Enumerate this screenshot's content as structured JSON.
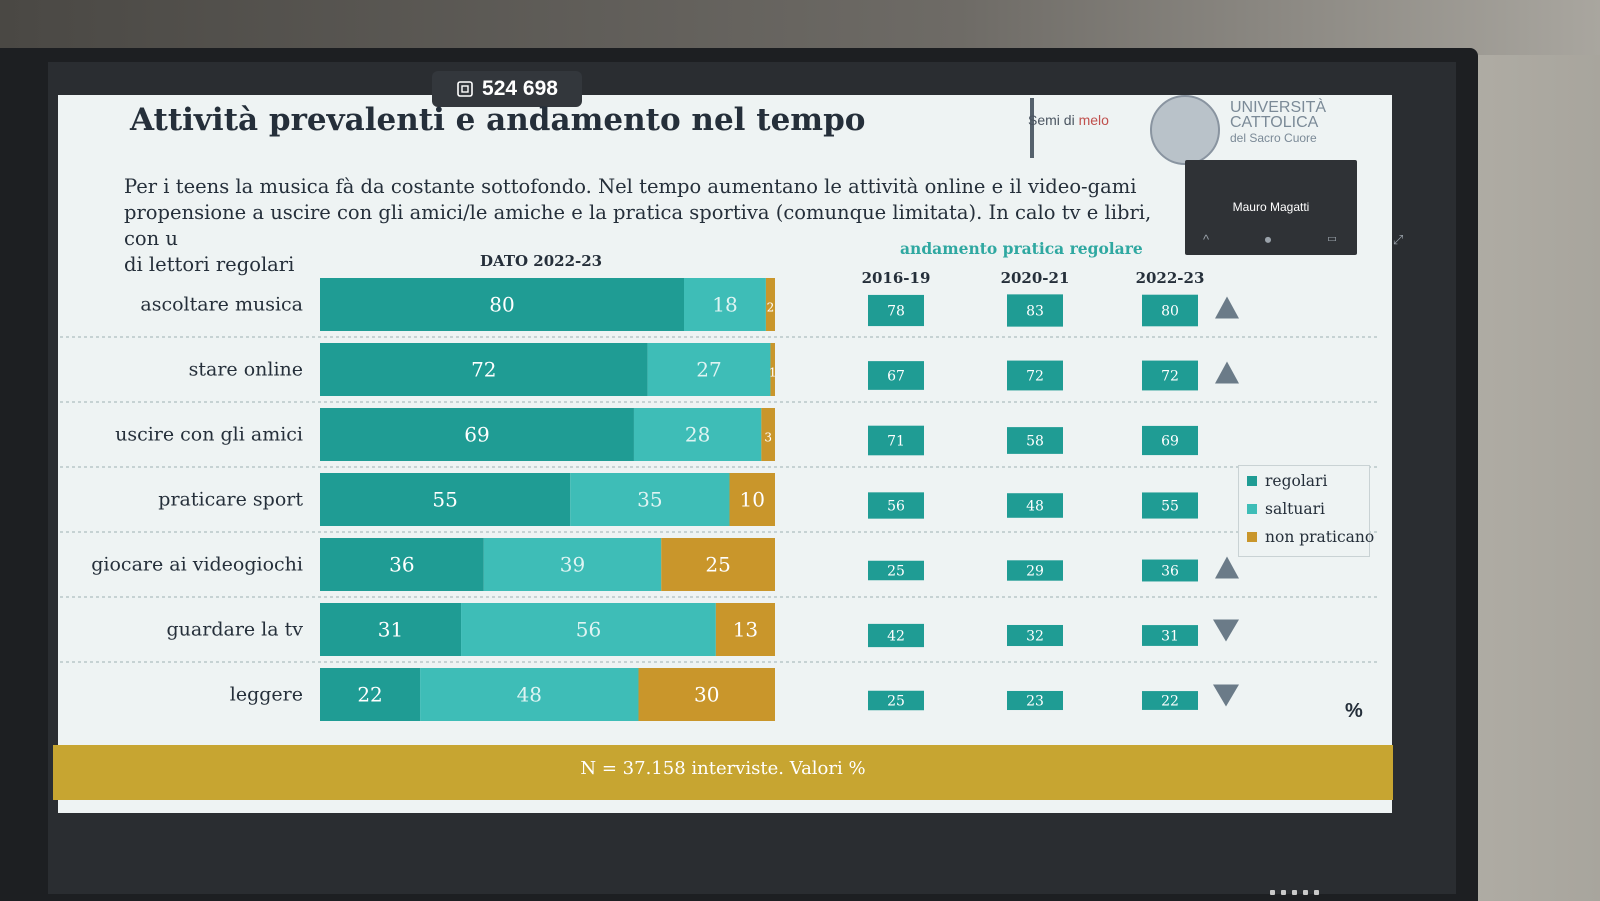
{
  "counter": {
    "icon": "presentation-counter-icon",
    "value": "524 698"
  },
  "slide": {
    "title": "Attività prevalenti e andamento nel tempo",
    "intro_line1": "Per i teens la musica fà da costante sottofondo. Nel tempo aumentano le attività online e il video-gami",
    "intro_line2": "propensione a uscire con gli amici/le amiche e la pratica sportiva (comunque limitata). In calo tv e libri, con u",
    "intro_line3": "di lettori regolari",
    "logo_semi_a": "Semi di ",
    "logo_semi_b": "melo",
    "uni_line1": "UNIVERSITÀ",
    "uni_line2": "CATTOLICA",
    "uni_line3": "del Sacro Cuore",
    "footer": "N = 37.158 interviste. Valori %",
    "percent_sign": "%"
  },
  "video_tile": {
    "name": "Mauro Magatti",
    "controls": "^ ⏺ ▭ ⤢"
  },
  "bar_header": "DATO 2022-23",
  "trend_header": "andamento pratica regolare",
  "legend": [
    {
      "label": "regolari",
      "color": "#1f9c94"
    },
    {
      "label": "saltuari",
      "color": "#3ebdb7"
    },
    {
      "label": "non praticano",
      "color": "#c9962b"
    }
  ],
  "chart_data": [
    {
      "type": "bar",
      "stacked": true,
      "orientation": "horizontal",
      "title": "DATO 2022-23",
      "categories": [
        "ascoltare musica",
        "stare online",
        "uscire con gli amici",
        "praticare sport",
        "giocare ai videogiochi",
        "guardare la tv",
        "leggere"
      ],
      "series": [
        {
          "name": "regolari",
          "color": "#1f9c94",
          "values": [
            80,
            72,
            69,
            55,
            36,
            31,
            22
          ]
        },
        {
          "name": "saltuari",
          "color": "#3ebdb7",
          "values": [
            18,
            27,
            28,
            35,
            39,
            56,
            48
          ]
        },
        {
          "name": "non praticano",
          "color": "#c9962b",
          "values": [
            2,
            1,
            3,
            10,
            25,
            13,
            30
          ]
        }
      ],
      "value_labels": [
        [
          "80",
          "18",
          "2"
        ],
        [
          "72",
          "27",
          "1"
        ],
        [
          "69",
          "28",
          "3"
        ],
        [
          "55",
          "35",
          "10"
        ],
        [
          "36",
          "39",
          "25"
        ],
        [
          "31",
          "56",
          "13"
        ],
        [
          "22",
          "48",
          "30"
        ]
      ],
      "xlim": [
        0,
        100
      ]
    },
    {
      "type": "table",
      "title": "andamento pratica regolare",
      "columns": [
        "2016-19",
        "2020-21",
        "2022-23"
      ],
      "rows": [
        {
          "category": "ascoltare musica",
          "values": [
            78,
            83,
            80
          ],
          "trend": "up"
        },
        {
          "category": "stare online",
          "values": [
            67,
            72,
            72
          ],
          "trend": "up"
        },
        {
          "category": "uscire con gli amici",
          "values": [
            71,
            58,
            69
          ],
          "trend": ""
        },
        {
          "category": "praticare sport",
          "values": [
            56,
            48,
            55
          ],
          "trend": ""
        },
        {
          "category": "giocare ai videogiochi",
          "values": [
            25,
            29,
            36
          ],
          "trend": "up"
        },
        {
          "category": "guardare la tv",
          "values": [
            42,
            32,
            31
          ],
          "trend": "down"
        },
        {
          "category": "leggere",
          "values": [
            25,
            23,
            22
          ],
          "trend": "down"
        }
      ]
    }
  ]
}
